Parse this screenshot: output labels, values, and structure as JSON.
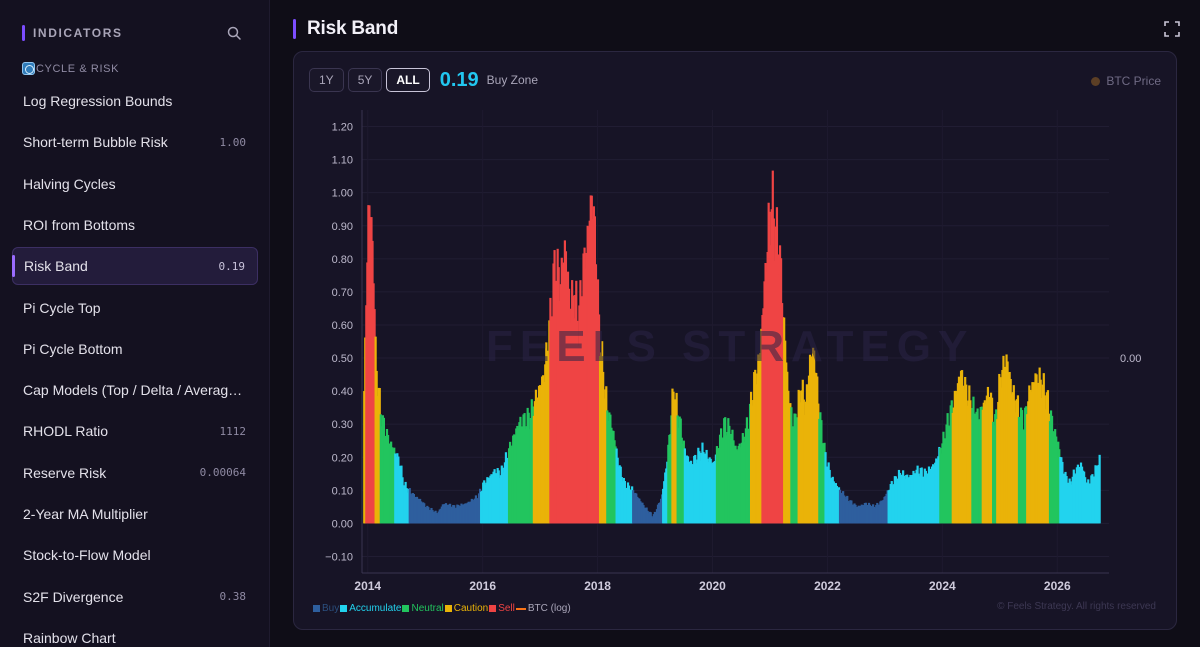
{
  "sidebar": {
    "header": "INDICATORS",
    "section": "CYCLE & RISK",
    "items": [
      {
        "label": "Log Regression Bounds",
        "value": ""
      },
      {
        "label": "Short-term Bubble Risk",
        "value": "1.00"
      },
      {
        "label": "Halving Cycles",
        "value": ""
      },
      {
        "label": "ROI from Bottoms",
        "value": ""
      },
      {
        "label": "Risk Band",
        "value": "0.19",
        "active": true
      },
      {
        "label": "Pi Cycle Top",
        "value": ""
      },
      {
        "label": "Pi Cycle Bottom",
        "value": ""
      },
      {
        "label": "Cap Models (Top / Delta / Averag…",
        "value": ""
      },
      {
        "label": "RHODL Ratio",
        "value": "1112"
      },
      {
        "label": "Reserve Risk",
        "value": "0.00064"
      },
      {
        "label": "2-Year MA Multiplier",
        "value": ""
      },
      {
        "label": "Stock-to-Flow Model",
        "value": ""
      },
      {
        "label": "S2F Divergence",
        "value": "0.38"
      },
      {
        "label": "Rainbow Chart",
        "value": ""
      }
    ]
  },
  "main": {
    "title": "Risk Band",
    "ranges": [
      "1Y",
      "5Y",
      "ALL"
    ],
    "active_range": "ALL",
    "score": "0.19",
    "zone": "Buy Zone",
    "btc_price_label": "BTC Price",
    "right_axis_value": "0.00",
    "watermark": "FEELS STRATEGY",
    "copyright": "© Feels Strategy. All rights reserved"
  },
  "colors": {
    "accent": "#7c4dff",
    "buy": "#2e5f9e",
    "accumulate": "#22d3ee",
    "neutral": "#22c55e",
    "caution": "#eab308",
    "sell": "#ef4444",
    "btc": "#f97316"
  },
  "chart_data": {
    "type": "bar",
    "title": "",
    "xlabel": "",
    "ylabel": "",
    "ylim": [
      -0.15,
      1.25
    ],
    "yticks": [
      "1.20",
      "1.10",
      "1.00",
      "0.90",
      "0.80",
      "0.70",
      "0.60",
      "0.50",
      "0.40",
      "0.30",
      "0.20",
      "0.10",
      "0.00",
      "−0.10"
    ],
    "xticks": [
      "2014",
      "2016",
      "2018",
      "2020",
      "2022",
      "2024",
      "2026"
    ],
    "xlim": [
      2013.9,
      2026.9
    ],
    "legend": [
      {
        "name": "Buy",
        "color": "#2e5f9e"
      },
      {
        "name": "Accumulate",
        "color": "#22d3ee"
      },
      {
        "name": "Neutral",
        "color": "#22c55e"
      },
      {
        "name": "Caution",
        "color": "#eab308"
      },
      {
        "name": "Sell",
        "color": "#ef4444"
      },
      {
        "name": "BTC (log)",
        "color": "#f97316",
        "type": "line"
      }
    ],
    "legend_position": "bottom-left",
    "grid": true,
    "series": [
      {
        "name": "Risk Band",
        "x": [
          2013.92,
          2014.0,
          2014.08,
          2014.12,
          2014.18,
          2014.25,
          2014.35,
          2014.45,
          2014.55,
          2014.6,
          2014.75,
          2014.9,
          2015.0,
          2015.1,
          2015.2,
          2015.3,
          2015.5,
          2015.7,
          2015.9,
          2016.0,
          2016.2,
          2016.3,
          2016.4,
          2016.5,
          2016.6,
          2016.8,
          2016.95,
          2017.05,
          2017.15,
          2017.25,
          2017.33,
          2017.42,
          2017.5,
          2017.58,
          2017.65,
          2017.72,
          2017.8,
          2017.88,
          2017.95,
          2018.0,
          2018.08,
          2018.15,
          2018.25,
          2018.35,
          2018.45,
          2018.6,
          2018.8,
          2018.95,
          2019.1,
          2019.2,
          2019.3,
          2019.42,
          2019.5,
          2019.6,
          2019.7,
          2019.8,
          2019.9,
          2020.0,
          2020.1,
          2020.2,
          2020.3,
          2020.4,
          2020.5,
          2020.6,
          2020.7,
          2020.8,
          2020.88,
          2020.96,
          2021.02,
          2021.08,
          2021.15,
          2021.22,
          2021.3,
          2021.38,
          2021.45,
          2021.52,
          2021.6,
          2021.68,
          2021.75,
          2021.82,
          2021.88,
          2021.95,
          2022.05,
          2022.2,
          2022.35,
          2022.5,
          2022.65,
          2022.8,
          2022.95,
          2023.1,
          2023.25,
          2023.4,
          2023.55,
          2023.7,
          2023.85,
          2024.0,
          2024.1,
          2024.2,
          2024.3,
          2024.4,
          2024.5,
          2024.6,
          2024.7,
          2024.8,
          2024.9,
          2025.0,
          2025.1,
          2025.2,
          2025.3,
          2025.4,
          2025.5,
          2025.6,
          2025.7,
          2025.8,
          2025.9,
          2026.0,
          2026.1,
          2026.2,
          2026.3,
          2026.4,
          2026.5,
          2026.6,
          2026.72
        ],
        "values": [
          0.4,
          1.0,
          0.8,
          0.5,
          0.38,
          0.3,
          0.25,
          0.22,
          0.18,
          0.12,
          0.09,
          0.07,
          0.05,
          0.04,
          0.03,
          0.06,
          0.05,
          0.06,
          0.08,
          0.12,
          0.16,
          0.15,
          0.2,
          0.25,
          0.3,
          0.32,
          0.4,
          0.45,
          0.6,
          0.8,
          0.72,
          0.85,
          0.65,
          0.7,
          0.6,
          0.75,
          0.85,
          1.0,
          0.85,
          0.62,
          0.45,
          0.35,
          0.28,
          0.18,
          0.12,
          0.1,
          0.05,
          0.02,
          0.08,
          0.2,
          0.4,
          0.3,
          0.22,
          0.18,
          0.2,
          0.22,
          0.2,
          0.18,
          0.25,
          0.3,
          0.28,
          0.22,
          0.25,
          0.3,
          0.42,
          0.5,
          0.7,
          0.9,
          0.97,
          0.88,
          0.82,
          0.62,
          0.4,
          0.3,
          0.32,
          0.42,
          0.35,
          0.5,
          0.52,
          0.38,
          0.28,
          0.2,
          0.14,
          0.1,
          0.07,
          0.05,
          0.06,
          0.05,
          0.07,
          0.12,
          0.15,
          0.14,
          0.16,
          0.15,
          0.18,
          0.25,
          0.32,
          0.38,
          0.46,
          0.4,
          0.35,
          0.32,
          0.36,
          0.4,
          0.3,
          0.45,
          0.5,
          0.4,
          0.35,
          0.3,
          0.4,
          0.44,
          0.43,
          0.38,
          0.3,
          0.24,
          0.15,
          0.12,
          0.16,
          0.18,
          0.12,
          0.14,
          0.19
        ]
      }
    ]
  }
}
